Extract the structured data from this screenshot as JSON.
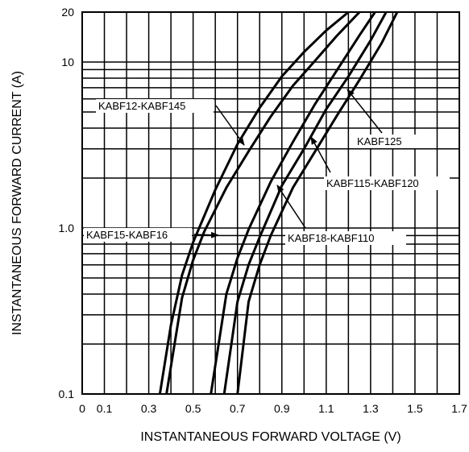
{
  "chart_data": {
    "type": "line",
    "title": "",
    "xlabel": "INSTANTANEOUS FORWARD VOLTAGE (V)",
    "ylabel": "INSTANTANEOUS FORWARD CURRENT (A)",
    "xscale": "linear",
    "yscale": "log",
    "xlim": [
      0,
      1.7
    ],
    "ylim": [
      0.1,
      20
    ],
    "x_ticks": [
      "0",
      "0.1",
      "0.3",
      "0.5",
      "0.7",
      "0.9",
      "1.1",
      "1.3",
      "1.5",
      "1.7"
    ],
    "y_ticks": [
      "0.1",
      "1.0",
      "10",
      "20"
    ],
    "grid": true,
    "series": [
      {
        "name": "KABF12-KABF145",
        "x": [
          0.35,
          0.4,
          0.45,
          0.5,
          0.6,
          0.7,
          0.8,
          0.9,
          1.0,
          1.1,
          1.2
        ],
        "y": [
          0.1,
          0.26,
          0.52,
          0.82,
          1.7,
          3.2,
          5.3,
          8.2,
          11.5,
          15.5,
          20
        ]
      },
      {
        "name": "KABF15-KABF16",
        "x": [
          0.38,
          0.45,
          0.5,
          0.55,
          0.65,
          0.75,
          0.85,
          0.95,
          1.05,
          1.15,
          1.25
        ],
        "y": [
          0.1,
          0.38,
          0.64,
          0.95,
          1.75,
          2.9,
          4.7,
          7.2,
          10.2,
          14.5,
          20
        ]
      },
      {
        "name": "KABF18-KABF110",
        "x": [
          0.58,
          0.65,
          0.7,
          0.75,
          0.85,
          0.95,
          1.05,
          1.15,
          1.25,
          1.32
        ],
        "y": [
          0.1,
          0.4,
          0.66,
          0.98,
          1.9,
          3.3,
          5.6,
          9.0,
          14.5,
          20
        ]
      },
      {
        "name": "KABF115-KABF120",
        "x": [
          0.64,
          0.7,
          0.75,
          0.8,
          0.9,
          1.0,
          1.1,
          1.2,
          1.3,
          1.37
        ],
        "y": [
          0.1,
          0.36,
          0.6,
          0.88,
          1.8,
          3.0,
          5.2,
          8.2,
          13.5,
          20
        ]
      },
      {
        "name": "KABF125",
        "x": [
          0.7,
          0.75,
          0.8,
          0.85,
          0.95,
          1.05,
          1.15,
          1.25,
          1.35,
          1.42
        ],
        "y": [
          0.1,
          0.36,
          0.6,
          0.9,
          1.75,
          2.9,
          4.8,
          7.8,
          13.0,
          20
        ]
      }
    ],
    "annotations": [
      {
        "text": "KABF12-KABF145",
        "points_to": "KABF12-KABF145"
      },
      {
        "text": "KABF15-KABF16",
        "points_to": "KABF15-KABF16"
      },
      {
        "text": "KABF18-KABF110",
        "points_to": "KABF18-KABF110"
      },
      {
        "text": "KABF115-KABF120",
        "points_to": "KABF115-KABF120"
      },
      {
        "text": "KABF125",
        "points_to": "KABF125"
      }
    ]
  }
}
